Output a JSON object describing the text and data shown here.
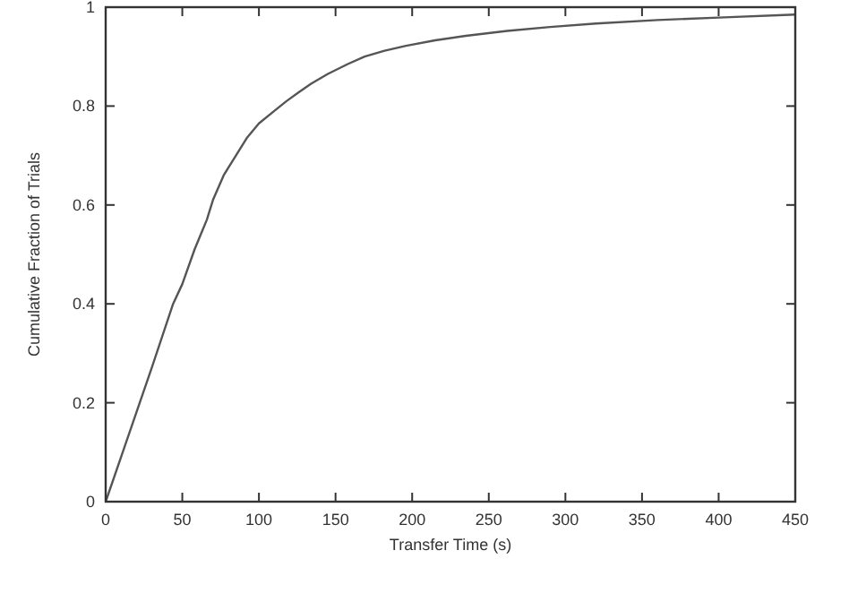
{
  "chart_data": {
    "type": "line",
    "xlabel": "Transfer Time (s)",
    "ylabel": "Cumulative Fraction of Trials",
    "xlim": [
      0,
      450
    ],
    "ylim": [
      0,
      1
    ],
    "xticks": [
      0,
      50,
      100,
      150,
      200,
      250,
      300,
      350,
      400,
      450
    ],
    "yticks": [
      0,
      0.2,
      0.4,
      0.6,
      0.8,
      1
    ],
    "series": [
      {
        "color": "#555555",
        "x": [
          0,
          10,
          20,
          30,
          44,
          50,
          58,
          66,
          70,
          77,
          85,
          92,
          100,
          110,
          118,
          126,
          134,
          145,
          158,
          169,
          182,
          196,
          215,
          235,
          262,
          290,
          320,
          360,
          400,
          450
        ],
        "values": [
          0,
          0.09,
          0.18,
          0.27,
          0.4,
          0.44,
          0.51,
          0.57,
          0.61,
          0.66,
          0.7,
          0.735,
          0.765,
          0.79,
          0.81,
          0.828,
          0.845,
          0.865,
          0.885,
          0.9,
          0.912,
          0.922,
          0.933,
          0.942,
          0.952,
          0.96,
          0.967,
          0.974,
          0.979,
          0.985
        ]
      }
    ]
  }
}
